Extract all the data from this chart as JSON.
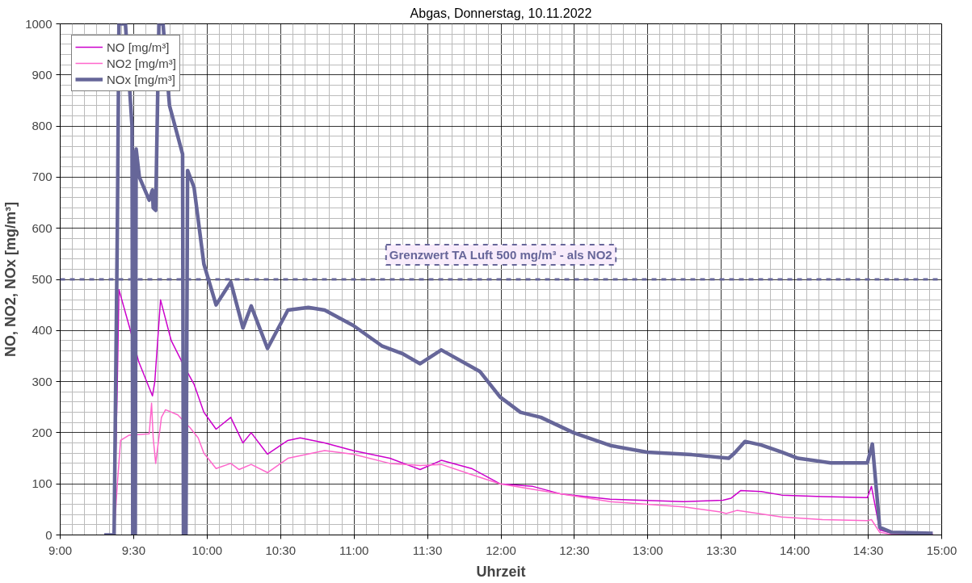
{
  "chart_data": {
    "type": "line",
    "title": "Abgas, Donnerstag, 10.11.2022",
    "xlabel": "Uhrzeit",
    "ylabel": "NO, NO2, NOx [mg/m³]",
    "xlim": [
      9,
      15
    ],
    "ylim": [
      0,
      1000
    ],
    "xticks": [
      {
        "value": 9,
        "label": "9:00"
      },
      {
        "value": 9.5,
        "label": "9:30"
      },
      {
        "value": 10,
        "label": "10:00"
      },
      {
        "value": 10.5,
        "label": "10:30"
      },
      {
        "value": 11,
        "label": "11:00"
      },
      {
        "value": 11.5,
        "label": "11:30"
      },
      {
        "value": 12,
        "label": "12:00"
      },
      {
        "value": 12.5,
        "label": "12:30"
      },
      {
        "value": 13,
        "label": "13:00"
      },
      {
        "value": 13.5,
        "label": "13:30"
      },
      {
        "value": 14,
        "label": "14:00"
      },
      {
        "value": 14.5,
        "label": "14:30"
      },
      {
        "value": 15,
        "label": "15:00"
      }
    ],
    "yticks": [
      0,
      100,
      200,
      300,
      400,
      500,
      600,
      700,
      800,
      900,
      1000
    ],
    "grid": true,
    "legend": "top left",
    "marker": "none",
    "line_style": "solid",
    "ref_lines": [
      {
        "axis": "y",
        "value": 500,
        "label": "Grenzwert TA Luft 500 mg/m³ - als NO2",
        "color": "#666699",
        "line_style": "dashed"
      }
    ],
    "series": [
      {
        "name": "NO [mg/m³]",
        "color": "#cc00cc",
        "x": [
          9.3,
          9.367,
          9.389,
          9.4,
          9.478,
          9.533,
          9.628,
          9.644,
          9.683,
          9.756,
          9.844,
          9.911,
          9.978,
          10.061,
          10.161,
          10.244,
          10.3,
          10.411,
          10.55,
          10.633,
          10.8,
          10.994,
          11.244,
          11.45,
          11.594,
          11.8,
          11.994,
          12.217,
          12.411,
          12.744,
          13.244,
          13.511,
          13.567,
          13.633,
          13.772,
          13.911,
          14.189,
          14.494,
          14.522,
          14.578,
          14.661,
          14.939
        ],
        "values": [
          0,
          0,
          300,
          480,
          400,
          340,
          272,
          300,
          460,
          380,
          330,
          295,
          240,
          207,
          230,
          180,
          200,
          158,
          185,
          190,
          180,
          165,
          150,
          128,
          146,
          130,
          100,
          95,
          80,
          70,
          65,
          68,
          72,
          87,
          85,
          78,
          75,
          73,
          95,
          10,
          3,
          2
        ]
      },
      {
        "name": "NO2 [mg/m³]",
        "color": "#ff66cc",
        "x": [
          9.3,
          9.367,
          9.389,
          9.411,
          9.467,
          9.606,
          9.622,
          9.633,
          9.65,
          9.689,
          9.717,
          9.8,
          9.883,
          9.939,
          9.978,
          10.061,
          10.161,
          10.217,
          10.3,
          10.411,
          10.55,
          10.8,
          10.994,
          11.244,
          11.45,
          11.594,
          11.8,
          11.994,
          12.411,
          12.744,
          13.244,
          13.494,
          13.533,
          13.606,
          13.911,
          14.189,
          14.494,
          14.522,
          14.578,
          14.661,
          14.939
        ],
        "values": [
          0,
          0,
          100,
          185,
          195,
          198,
          258,
          190,
          140,
          230,
          245,
          235,
          210,
          190,
          160,
          130,
          140,
          128,
          138,
          122,
          150,
          165,
          158,
          140,
          136,
          138,
          118,
          100,
          80,
          65,
          55,
          45,
          42,
          48,
          35,
          30,
          28,
          30,
          5,
          1,
          1
        ]
      },
      {
        "name": "NOx [mg/m³]",
        "color": "#666699",
        "x": [
          9.3,
          9.367,
          9.389,
          9.4,
          9.444,
          9.489,
          9.494,
          9.506,
          9.511,
          9.517,
          9.539,
          9.606,
          9.628,
          9.633,
          9.65,
          9.672,
          9.7,
          9.744,
          9.833,
          9.839,
          9.856,
          9.867,
          9.911,
          9.978,
          10.061,
          10.161,
          10.244,
          10.3,
          10.411,
          10.55,
          10.689,
          10.8,
          10.994,
          11.189,
          11.328,
          11.45,
          11.594,
          11.856,
          11.994,
          12.133,
          12.272,
          12.494,
          12.744,
          12.994,
          13.3,
          13.55,
          13.589,
          13.661,
          13.772,
          13.911,
          14.022,
          14.244,
          14.494,
          14.528,
          14.578,
          14.661,
          14.939
        ],
        "values": [
          0,
          0,
          600,
          1000,
          1000,
          800,
          0,
          750,
          0,
          755,
          700,
          655,
          675,
          640,
          635,
          1000,
          1000,
          840,
          745,
          0,
          0,
          713,
          680,
          530,
          450,
          495,
          405,
          448,
          365,
          440,
          445,
          440,
          410,
          370,
          355,
          335,
          362,
          320,
          270,
          240,
          230,
          200,
          175,
          162,
          157,
          150,
          160,
          183,
          176,
          162,
          150,
          141,
          141,
          178,
          15,
          5,
          3
        ]
      }
    ]
  }
}
